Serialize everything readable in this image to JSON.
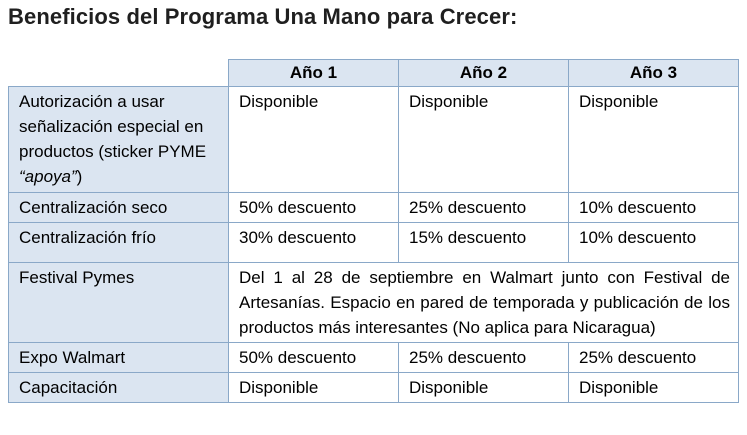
{
  "title": "Beneficios del Programa Una Mano para Crecer:",
  "headers": [
    "",
    "Año 1",
    "Año 2",
    "Año 3"
  ],
  "rows": {
    "sticker": {
      "label_pre": "Autorización a usar señalización especial en productos (sticker PYME ",
      "label_em": "“apoya”",
      "label_post": ")",
      "y1": "Disponible",
      "y2": "Disponible",
      "y3": "Disponible"
    },
    "seco": {
      "label": "Centralización seco",
      "y1": "50% descuento",
      "y2": "25% descuento",
      "y3": "10% descuento"
    },
    "frio": {
      "label": "Centralización frío",
      "y1": "30% descuento",
      "y2": "15% descuento",
      "y3": "10% descuento"
    },
    "festival": {
      "label": "Festival Pymes",
      "value": "Del 1 al 28 de septiembre en Walmart junto con Festival de Artesanías. Espacio en pared de temporada y publicación de los productos más interesantes (No aplica para Nicaragua)"
    },
    "expo": {
      "label": "Expo Walmart",
      "y1": "50% descuento",
      "y2": "25% descuento",
      "y3": "25% descuento"
    },
    "capacitacion": {
      "label": "Capacitación",
      "y1": "Disponible",
      "y2": "Disponible",
      "y3": "Disponible"
    }
  }
}
